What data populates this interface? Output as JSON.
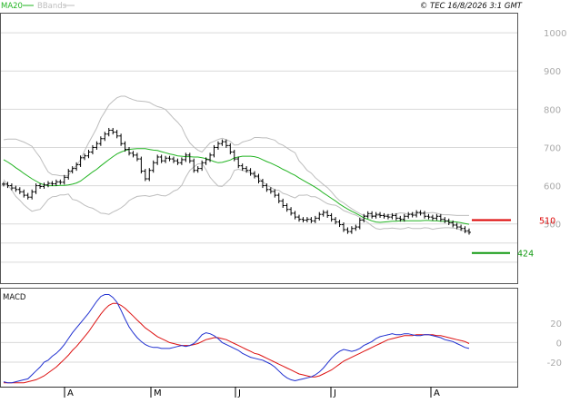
{
  "legend": {
    "ma_label": "MA20",
    "bbands_label": "BBands"
  },
  "copyright": "© TEC 16/8/2026 3:1 GMT",
  "macd_label": "MACD",
  "colors": {
    "price": "#000000",
    "ma": "#22b422",
    "bbands": "#bdbdbd",
    "resistance": "#dd0000",
    "support": "#119911",
    "macd": "#1f2fd0",
    "signal": "#dd1111",
    "grid": "#d9d9d9",
    "axis_text": "#aaaaaa"
  },
  "chart_data": [
    {
      "type": "line",
      "title": "",
      "xlabel": "",
      "ylabel": "",
      "ylim": [
        345,
        1050
      ],
      "y_ticks": [
        "1000",
        "900",
        "800",
        "700",
        "600",
        "500"
      ],
      "x_ticks": [
        "A",
        "M",
        "J",
        "J",
        "A"
      ],
      "grid": true,
      "series": [
        {
          "name": "MA20",
          "values": [
            668,
            662,
            655,
            647,
            640,
            632,
            625,
            618,
            612,
            606,
            602,
            600,
            600,
            600,
            601,
            601,
            602,
            604,
            607,
            612,
            620,
            628,
            636,
            643,
            652,
            660,
            668,
            676,
            683,
            688,
            692,
            695,
            696,
            697,
            697,
            697,
            695,
            693,
            692,
            689,
            686,
            683,
            681,
            678,
            677,
            676,
            676,
            675,
            675,
            673,
            671,
            667,
            663,
            660,
            661,
            664,
            667,
            673,
            675,
            677,
            677,
            677,
            676,
            673,
            668,
            663,
            659,
            654,
            649,
            643,
            638,
            632,
            627,
            620,
            614,
            608,
            602,
            596,
            589,
            581,
            574,
            567,
            560,
            552,
            545,
            539,
            533,
            528,
            522,
            516,
            512,
            508,
            505,
            504,
            505,
            506,
            507,
            507,
            508,
            508,
            508,
            508,
            508,
            508,
            509,
            509,
            508,
            508,
            507,
            507,
            507,
            506,
            505,
            503,
            501,
            499
          ]
        },
        {
          "name": "BBands upper",
          "values": [
            720,
            722,
            722,
            722,
            718,
            714,
            709,
            703,
            688,
            674,
            654,
            636,
            629,
            628,
            626,
            626,
            626,
            644,
            652,
            668,
            691,
            712,
            731,
            751,
            776,
            793,
            811,
            821,
            830,
            834,
            834,
            829,
            825,
            822,
            821,
            820,
            818,
            812,
            807,
            804,
            799,
            788,
            776,
            766,
            753,
            730,
            712,
            701,
            693,
            688,
            700,
            712,
            716,
            721,
            724,
            720,
            716,
            706,
            707,
            714,
            717,
            720,
            726,
            726,
            725,
            725,
            722,
            719,
            710,
            706,
            699,
            692,
            686,
            665,
            653,
            640,
            633,
            621,
            612,
            603,
            595,
            584,
            571,
            561,
            555,
            547,
            540,
            533,
            527,
            522,
            521,
            521,
            522,
            522,
            522,
            524,
            525,
            526,
            529,
            528,
            525,
            528,
            528,
            528,
            528,
            529,
            530,
            528,
            525,
            524,
            524,
            523,
            522,
            522,
            522,
            522
          ]
        },
        {
          "name": "BBands lower",
          "values": [
            616,
            602,
            588,
            572,
            562,
            550,
            541,
            533,
            536,
            538,
            550,
            564,
            571,
            572,
            576,
            576,
            578,
            564,
            562,
            556,
            549,
            544,
            541,
            535,
            528,
            527,
            525,
            531,
            536,
            542,
            550,
            561,
            567,
            572,
            573,
            574,
            572,
            574,
            577,
            574,
            573,
            578,
            586,
            590,
            601,
            622,
            640,
            649,
            657,
            658,
            642,
            622,
            610,
            599,
            598,
            608,
            618,
            640,
            643,
            640,
            637,
            634,
            626,
            620,
            611,
            601,
            596,
            589,
            588,
            580,
            577,
            572,
            568,
            575,
            575,
            576,
            571,
            571,
            566,
            559,
            553,
            550,
            549,
            543,
            535,
            531,
            526,
            523,
            517,
            510,
            503,
            495,
            488,
            486,
            488,
            488,
            489,
            488,
            487,
            488,
            491,
            488,
            488,
            488,
            490,
            489,
            486,
            488,
            489,
            490,
            490,
            489,
            488,
            484,
            480,
            476
          ]
        },
        {
          "name": "Close",
          "values": [
            604,
            600,
            594,
            590,
            584,
            575,
            570,
            584,
            600,
            598,
            602,
            606,
            605,
            610,
            609,
            622,
            638,
            645,
            655,
            673,
            678,
            688,
            700,
            710,
            723,
            735,
            745,
            740,
            730,
            710,
            695,
            685,
            680,
            670,
            638,
            618,
            640,
            660,
            675,
            665,
            672,
            670,
            665,
            660,
            668,
            680,
            665,
            640,
            645,
            660,
            668,
            680,
            700,
            710,
            715,
            705,
            688,
            670,
            652,
            645,
            640,
            632,
            625,
            612,
            600,
            590,
            585,
            575,
            560,
            548,
            538,
            528,
            518,
            512,
            510,
            512,
            508,
            515,
            525,
            530,
            522,
            512,
            505,
            498,
            485,
            480,
            488,
            492,
            510,
            520,
            527,
            520,
            525,
            522,
            520,
            518,
            522,
            515,
            512,
            520,
            525,
            523,
            530,
            528,
            520,
            518,
            515,
            520,
            512,
            508,
            503,
            497,
            492,
            488,
            482,
            478
          ]
        }
      ],
      "annotations": [
        {
          "label": "510",
          "value": 510,
          "kind": "resistance"
        },
        {
          "label": "424",
          "value": 424,
          "kind": "support"
        }
      ]
    },
    {
      "type": "line",
      "title": "MACD",
      "ylim": [
        -45,
        55
      ],
      "y_ticks": [
        "20",
        "0",
        "-20"
      ],
      "series": [
        {
          "name": "MACD",
          "values": [
            -40,
            -41,
            -41,
            -40,
            -39,
            -38,
            -37,
            -33,
            -29,
            -25,
            -20,
            -18,
            -14,
            -11,
            -7,
            -2,
            4,
            10,
            15,
            20,
            25,
            30,
            36,
            42,
            47,
            49,
            49,
            46,
            41,
            33,
            24,
            16,
            10,
            5,
            1,
            -2,
            -4,
            -5,
            -5,
            -6,
            -6,
            -6,
            -5,
            -4,
            -3,
            -4,
            -3,
            -1,
            3,
            8,
            10,
            9,
            7,
            4,
            0,
            -2,
            -4,
            -6,
            -8,
            -11,
            -13,
            -15,
            -16,
            -17,
            -18,
            -20,
            -22,
            -25,
            -29,
            -33,
            -36,
            -38,
            -39,
            -38,
            -37,
            -36,
            -35,
            -33,
            -30,
            -26,
            -21,
            -16,
            -12,
            -9,
            -7,
            -8,
            -9,
            -8,
            -6,
            -3,
            -1,
            1,
            4,
            6,
            7,
            8,
            9,
            8,
            8,
            9,
            9,
            8,
            7,
            7,
            8,
            8,
            7,
            6,
            5,
            3,
            2,
            1,
            -1,
            -3,
            -5,
            -6
          ]
        },
        {
          "name": "Signal",
          "values": [
            -41,
            -41,
            -41,
            -41,
            -41,
            -41,
            -40,
            -39,
            -38,
            -36,
            -34,
            -31,
            -28,
            -25,
            -21,
            -17,
            -13,
            -8,
            -4,
            1,
            6,
            11,
            17,
            23,
            29,
            34,
            38,
            40,
            40,
            38,
            35,
            31,
            27,
            23,
            19,
            15,
            12,
            9,
            6,
            4,
            2,
            0,
            -1,
            -2,
            -3,
            -3,
            -3,
            -2,
            -1,
            1,
            3,
            4,
            5,
            5,
            4,
            3,
            1,
            -1,
            -3,
            -5,
            -7,
            -9,
            -11,
            -12,
            -14,
            -16,
            -18,
            -20,
            -22,
            -24,
            -26,
            -28,
            -30,
            -32,
            -33,
            -34,
            -35,
            -35,
            -34,
            -32,
            -30,
            -28,
            -25,
            -22,
            -19,
            -17,
            -15,
            -13,
            -11,
            -9,
            -7,
            -5,
            -3,
            -1,
            1,
            3,
            4,
            5,
            6,
            7,
            7,
            7,
            8,
            8,
            8,
            8,
            8,
            7,
            7,
            6,
            5,
            4,
            3,
            2,
            1,
            -1
          ]
        }
      ]
    }
  ]
}
